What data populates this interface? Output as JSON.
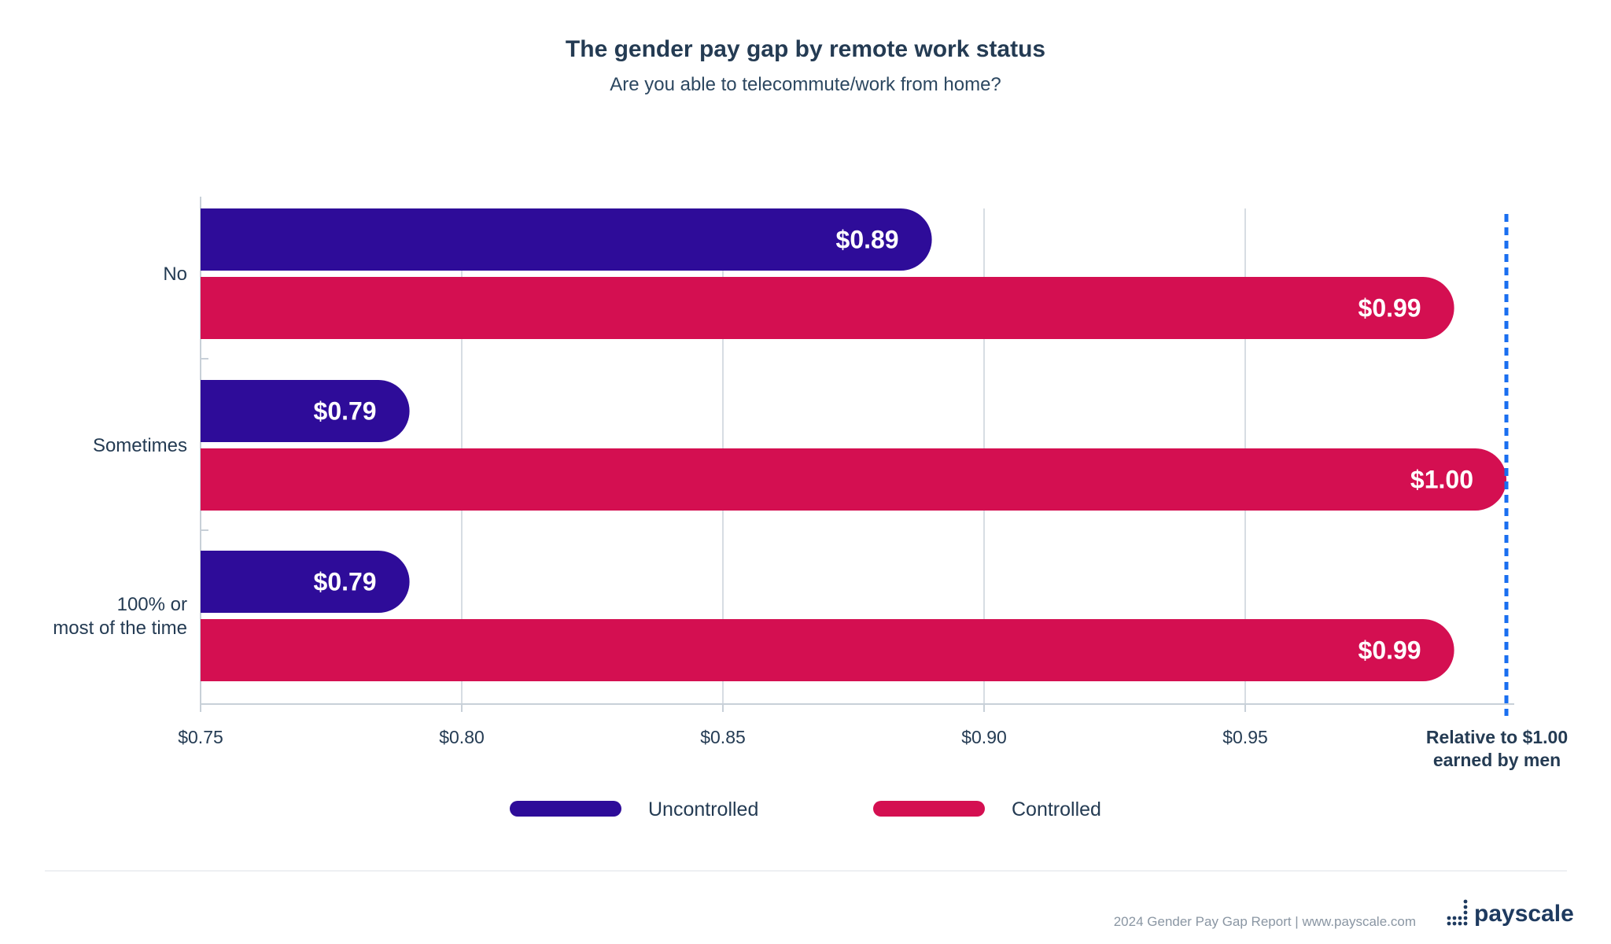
{
  "chart_data": {
    "type": "bar",
    "orientation": "horizontal",
    "title": "The gender pay gap by remote work status",
    "subtitle": "Are you able to telecommute/work from home?",
    "categories": [
      "No",
      "Sometimes",
      "100% or most of the time"
    ],
    "series": [
      {
        "name": "Uncontrolled",
        "color": "#2e0c99",
        "values": [
          0.89,
          0.79,
          0.79
        ],
        "labels": [
          "$0.89",
          "$0.79",
          "$0.79"
        ]
      },
      {
        "name": "Controlled",
        "color": "#d40f51",
        "values": [
          0.99,
          1.0,
          0.99
        ],
        "labels": [
          "$0.99",
          "$1.00",
          "$0.99"
        ]
      }
    ],
    "xlim": [
      0.75,
      1.0
    ],
    "x_ticks": [
      0.75,
      0.8,
      0.85,
      0.9,
      0.95
    ],
    "x_tick_labels": [
      "$0.75",
      "$0.80",
      "$0.85",
      "$0.90",
      "$0.95"
    ],
    "reference_line": {
      "value": 1.0,
      "label": "Relative to $1.00 earned by men",
      "color": "#1a6ff0",
      "style": "dashed"
    },
    "grid": "vertical",
    "legend_position": "bottom-center"
  },
  "footer": {
    "source": "2024 Gender Pay Gap Report  |  www.payscale.com",
    "logo_text": "payscale",
    "logo_icon": "payscale-dots-icon"
  }
}
